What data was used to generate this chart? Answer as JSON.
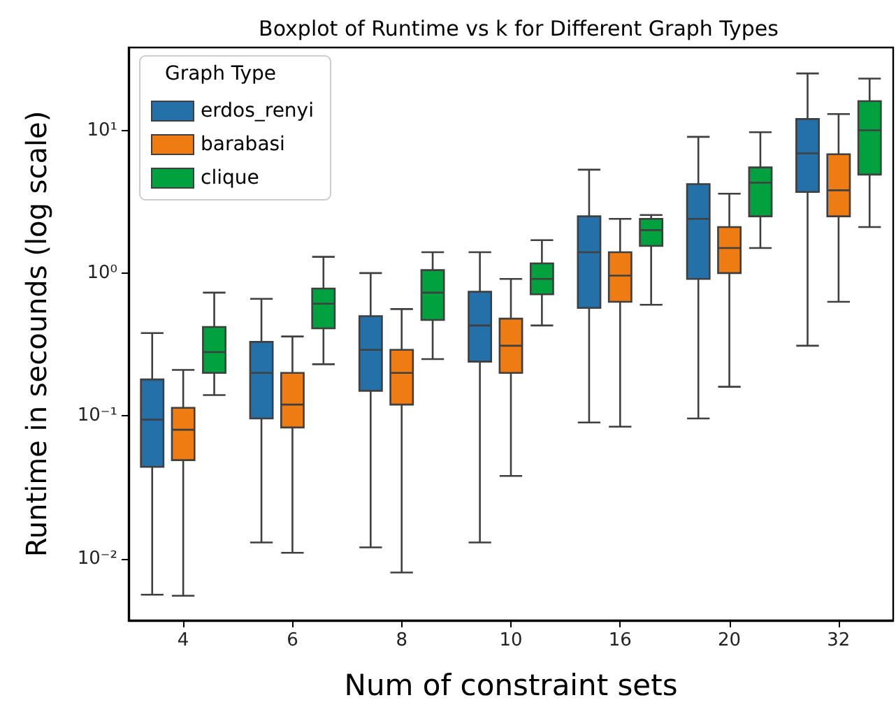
{
  "chart_data": {
    "type": "box",
    "title": "Boxplot of Runtime vs k for Different Graph Types",
    "xlabel": "Num of constraint sets",
    "ylabel": "Runtime in secounds (log scale)",
    "legend_title": "Graph Type",
    "legend": "top left",
    "grid": false,
    "log": "y",
    "categories": [
      "4",
      "6",
      "8",
      "10",
      "16",
      "20",
      "32"
    ],
    "ylim": [
      0.0037,
      38
    ],
    "yticks": [
      {
        "value": 0.01,
        "label": "10⁻²"
      },
      {
        "value": 0.1,
        "label": "10⁻¹"
      },
      {
        "value": 1,
        "label": "10⁰"
      },
      {
        "value": 10,
        "label": "10¹"
      }
    ],
    "series": [
      {
        "name": "erdos_renyi",
        "color": "#2470a8",
        "boxes": [
          {
            "low": 0.0056,
            "q1": 0.044,
            "median": 0.094,
            "q3": 0.18,
            "high": 0.38
          },
          {
            "low": 0.013,
            "q1": 0.096,
            "median": 0.2,
            "q3": 0.33,
            "high": 0.66
          },
          {
            "low": 0.012,
            "q1": 0.15,
            "median": 0.29,
            "q3": 0.5,
            "high": 1.0
          },
          {
            "low": 0.013,
            "q1": 0.24,
            "median": 0.43,
            "q3": 0.74,
            "high": 1.4
          },
          {
            "low": 0.09,
            "q1": 0.57,
            "median": 1.4,
            "q3": 2.5,
            "high": 5.3
          },
          {
            "low": 0.096,
            "q1": 0.91,
            "median": 2.4,
            "q3": 4.2,
            "high": 9.0
          },
          {
            "low": 0.31,
            "q1": 3.7,
            "median": 6.9,
            "q3": 12,
            "high": 25
          }
        ]
      },
      {
        "name": "barabasi",
        "color": "#ee7c12",
        "boxes": [
          {
            "low": 0.0055,
            "q1": 0.049,
            "median": 0.08,
            "q3": 0.114,
            "high": 0.21
          },
          {
            "low": 0.011,
            "q1": 0.083,
            "median": 0.12,
            "q3": 0.2,
            "high": 0.36
          },
          {
            "low": 0.008,
            "q1": 0.12,
            "median": 0.2,
            "q3": 0.29,
            "high": 0.56
          },
          {
            "low": 0.038,
            "q1": 0.2,
            "median": 0.31,
            "q3": 0.48,
            "high": 0.91
          },
          {
            "low": 0.084,
            "q1": 0.63,
            "median": 0.96,
            "q3": 1.4,
            "high": 2.4
          },
          {
            "low": 0.16,
            "q1": 1.0,
            "median": 1.5,
            "q3": 2.1,
            "high": 3.6
          },
          {
            "low": 0.63,
            "q1": 2.5,
            "median": 3.8,
            "q3": 6.8,
            "high": 13
          }
        ]
      },
      {
        "name": "clique",
        "color": "#00a13e",
        "boxes": [
          {
            "low": 0.14,
            "q1": 0.2,
            "median": 0.28,
            "q3": 0.42,
            "high": 0.73
          },
          {
            "low": 0.23,
            "q1": 0.41,
            "median": 0.61,
            "q3": 0.78,
            "high": 1.3
          },
          {
            "low": 0.25,
            "q1": 0.47,
            "median": 0.73,
            "q3": 1.05,
            "high": 1.4
          },
          {
            "low": 0.43,
            "q1": 0.71,
            "median": 0.91,
            "q3": 1.17,
            "high": 1.7
          },
          {
            "low": 0.6,
            "q1": 1.55,
            "median": 2.0,
            "q3": 2.4,
            "high": 2.55
          },
          {
            "low": 1.5,
            "q1": 2.5,
            "median": 4.3,
            "q3": 5.5,
            "high": 9.7
          },
          {
            "low": 2.1,
            "q1": 4.9,
            "median": 10,
            "q3": 16,
            "high": 23
          }
        ]
      }
    ]
  }
}
